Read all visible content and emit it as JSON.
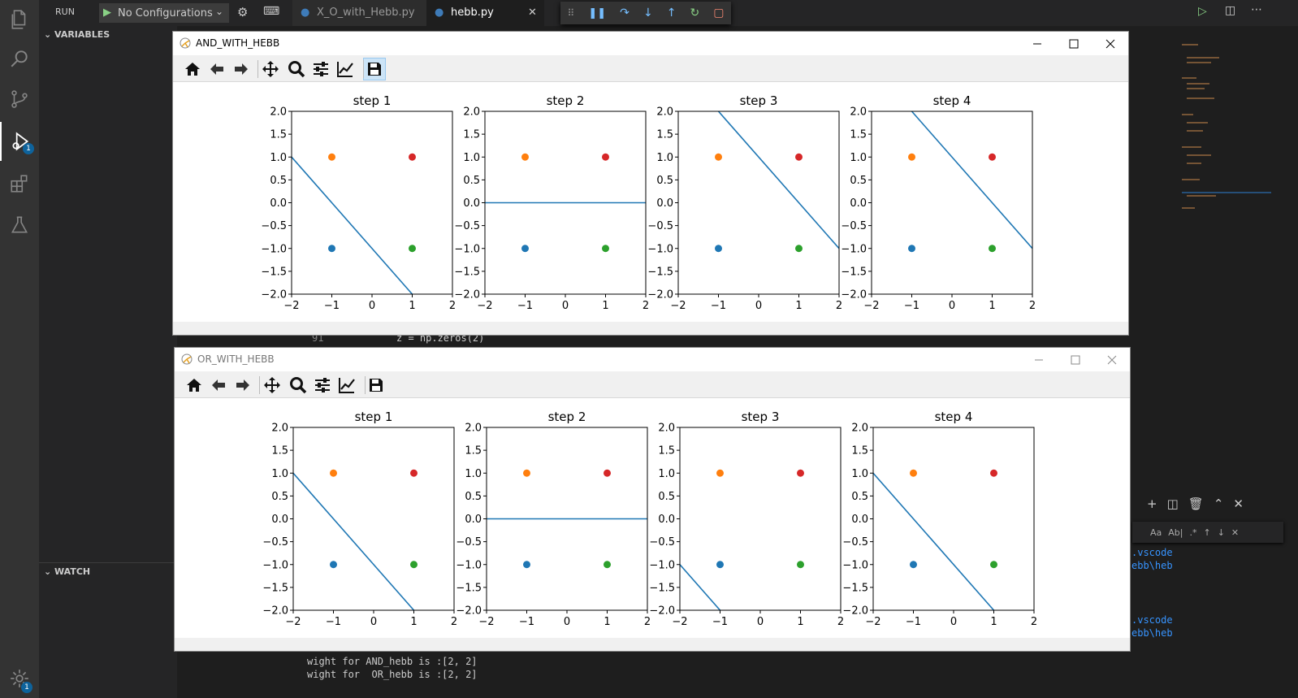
{
  "vscode": {
    "run_label": "RUN",
    "config_label": "No Configurations",
    "sections": {
      "variables": "VARIABLES",
      "watch": "WATCH"
    },
    "tabs": [
      {
        "label": "X_O_with_Hebb.py"
      },
      {
        "label": "hebb.py"
      }
    ],
    "debug_badge": "1",
    "settings_badge": "1",
    "code_line": {
      "number": "91",
      "text": "z = np.zeros(2)"
    },
    "terminal": {
      "lines": [
        "wight for AND_hebb is :[2, 2]",
        "wight for  OR_hebb is :[2, 2]"
      ],
      "path_fragments": [
        ".vscode",
        "ebb\\heb",
        ".vscode",
        "ebb\\heb"
      ]
    },
    "colors": {
      "accent": "#0e639c",
      "background": "#1e1e1e",
      "sidebar": "#252526"
    }
  },
  "windows": [
    {
      "title": "AND_WITH_HEBB",
      "active": true,
      "chart_data": [
        {
          "type": "scatter",
          "title": "step 1",
          "xlim": [
            -2,
            2
          ],
          "ylim": [
            -2,
            2
          ],
          "line": [
            [
              -2,
              1
            ],
            [
              1,
              -2
            ]
          ],
          "points": [
            {
              "x": -1,
              "y": -1,
              "color": "#1f77b4"
            },
            {
              "x": -1,
              "y": 1,
              "color": "#ff7f0e"
            },
            {
              "x": 1,
              "y": -1,
              "color": "#2ca02c"
            },
            {
              "x": 1,
              "y": 1,
              "color": "#d62728"
            }
          ]
        },
        {
          "type": "scatter",
          "title": "step 2",
          "xlim": [
            -2,
            2
          ],
          "ylim": [
            -2,
            2
          ],
          "line": [
            [
              -2,
              0
            ],
            [
              2,
              0
            ]
          ],
          "points": [
            {
              "x": -1,
              "y": -1,
              "color": "#1f77b4"
            },
            {
              "x": -1,
              "y": 1,
              "color": "#ff7f0e"
            },
            {
              "x": 1,
              "y": -1,
              "color": "#2ca02c"
            },
            {
              "x": 1,
              "y": 1,
              "color": "#d62728"
            }
          ]
        },
        {
          "type": "scatter",
          "title": "step 3",
          "xlim": [
            -2,
            2
          ],
          "ylim": [
            -2,
            2
          ],
          "line": [
            [
              -1,
              2
            ],
            [
              2,
              -1
            ]
          ],
          "points": [
            {
              "x": -1,
              "y": -1,
              "color": "#1f77b4"
            },
            {
              "x": -1,
              "y": 1,
              "color": "#ff7f0e"
            },
            {
              "x": 1,
              "y": -1,
              "color": "#2ca02c"
            },
            {
              "x": 1,
              "y": 1,
              "color": "#d62728"
            }
          ]
        },
        {
          "type": "scatter",
          "title": "step 4",
          "xlim": [
            -2,
            2
          ],
          "ylim": [
            -2,
            2
          ],
          "line": [
            [
              -1,
              2
            ],
            [
              2,
              -1
            ]
          ],
          "points": [
            {
              "x": -1,
              "y": -1,
              "color": "#1f77b4"
            },
            {
              "x": -1,
              "y": 1,
              "color": "#ff7f0e"
            },
            {
              "x": 1,
              "y": -1,
              "color": "#2ca02c"
            },
            {
              "x": 1,
              "y": 1,
              "color": "#d62728"
            }
          ]
        }
      ]
    },
    {
      "title": "OR_WITH_HEBB",
      "active": false,
      "chart_data": [
        {
          "type": "scatter",
          "title": "step 1",
          "xlim": [
            -2,
            2
          ],
          "ylim": [
            -2,
            2
          ],
          "line": [
            [
              -2,
              1
            ],
            [
              1,
              -2
            ]
          ],
          "points": [
            {
              "x": -1,
              "y": -1,
              "color": "#1f77b4"
            },
            {
              "x": -1,
              "y": 1,
              "color": "#ff7f0e"
            },
            {
              "x": 1,
              "y": -1,
              "color": "#2ca02c"
            },
            {
              "x": 1,
              "y": 1,
              "color": "#d62728"
            }
          ]
        },
        {
          "type": "scatter",
          "title": "step 2",
          "xlim": [
            -2,
            2
          ],
          "ylim": [
            -2,
            2
          ],
          "line": [
            [
              -2,
              0
            ],
            [
              2,
              0
            ]
          ],
          "points": [
            {
              "x": -1,
              "y": -1,
              "color": "#1f77b4"
            },
            {
              "x": -1,
              "y": 1,
              "color": "#ff7f0e"
            },
            {
              "x": 1,
              "y": -1,
              "color": "#2ca02c"
            },
            {
              "x": 1,
              "y": 1,
              "color": "#d62728"
            }
          ]
        },
        {
          "type": "scatter",
          "title": "step 3",
          "xlim": [
            -2,
            2
          ],
          "ylim": [
            -2,
            2
          ],
          "line": [
            [
              -2,
              -1
            ],
            [
              -1,
              -2
            ]
          ],
          "points": [
            {
              "x": -1,
              "y": -1,
              "color": "#1f77b4"
            },
            {
              "x": -1,
              "y": 1,
              "color": "#ff7f0e"
            },
            {
              "x": 1,
              "y": -1,
              "color": "#2ca02c"
            },
            {
              "x": 1,
              "y": 1,
              "color": "#d62728"
            }
          ]
        },
        {
          "type": "scatter",
          "title": "step 4",
          "xlim": [
            -2,
            2
          ],
          "ylim": [
            -2,
            2
          ],
          "line": [
            [
              -2,
              1
            ],
            [
              1,
              -2
            ]
          ],
          "points": [
            {
              "x": -1,
              "y": -1,
              "color": "#1f77b4"
            },
            {
              "x": -1,
              "y": 1,
              "color": "#ff7f0e"
            },
            {
              "x": 1,
              "y": -1,
              "color": "#2ca02c"
            },
            {
              "x": 1,
              "y": 1,
              "color": "#d62728"
            }
          ]
        }
      ]
    }
  ],
  "axis_ticks": {
    "x": [
      "−2",
      "−1",
      "0",
      "1",
      "2"
    ],
    "y": [
      "2.0",
      "1.5",
      "1.0",
      "0.5",
      "0.0",
      "−0.5",
      "−1.0",
      "−1.5",
      "−2.0"
    ]
  },
  "toolbar_icons": [
    "home-icon",
    "back-arrow-icon",
    "forward-arrow-icon",
    "pan-icon",
    "zoom-icon",
    "configure-subplots-icon",
    "edit-axes-icon",
    "save-icon"
  ]
}
